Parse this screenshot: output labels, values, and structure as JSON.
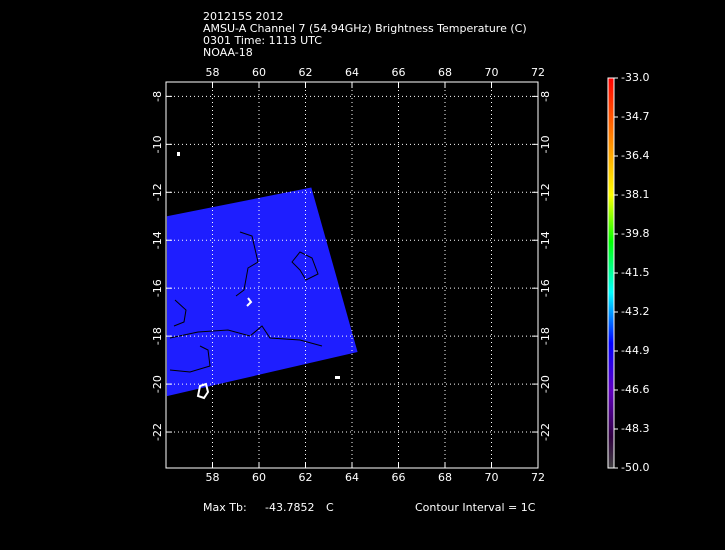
{
  "header": {
    "lines": [
      "201215S 2012",
      "AMSU-A Channel 7 (54.94GHz) Brightness Temperature (C)",
      "0301 Time: 1113 UTC",
      "NOAA-18"
    ]
  },
  "map": {
    "xlim": [
      56,
      72
    ],
    "ylim": [
      -23.5,
      -7.4
    ],
    "xticks": [
      58,
      60,
      62,
      64,
      66,
      68,
      70,
      72
    ],
    "yticks": [
      -8,
      -10,
      -12,
      -14,
      -16,
      -18,
      -20,
      -22
    ],
    "grid": true,
    "swath": {
      "color": "#1e1eff",
      "lon": [
        56.04,
        62.25,
        64.24,
        56.04
      ],
      "lat": [
        -13.0,
        -11.8,
        -18.66,
        -20.5
      ]
    }
  },
  "colorbar": {
    "clim": [
      -50,
      -33
    ],
    "ticks": [
      {
        "value": -33,
        "label": "-33.0"
      },
      -34.7,
      -36.4,
      -38.1,
      -39.8,
      -41.5,
      -43.2,
      -44.9,
      -46.6,
      -48.3,
      {
        "value": -50,
        "label": "-50.0"
      }
    ]
  },
  "footer": {
    "max_label": "Max Tb:",
    "max_value": "-43.7852",
    "max_unit": "C",
    "contour": "Contour Interval = 1C"
  }
}
